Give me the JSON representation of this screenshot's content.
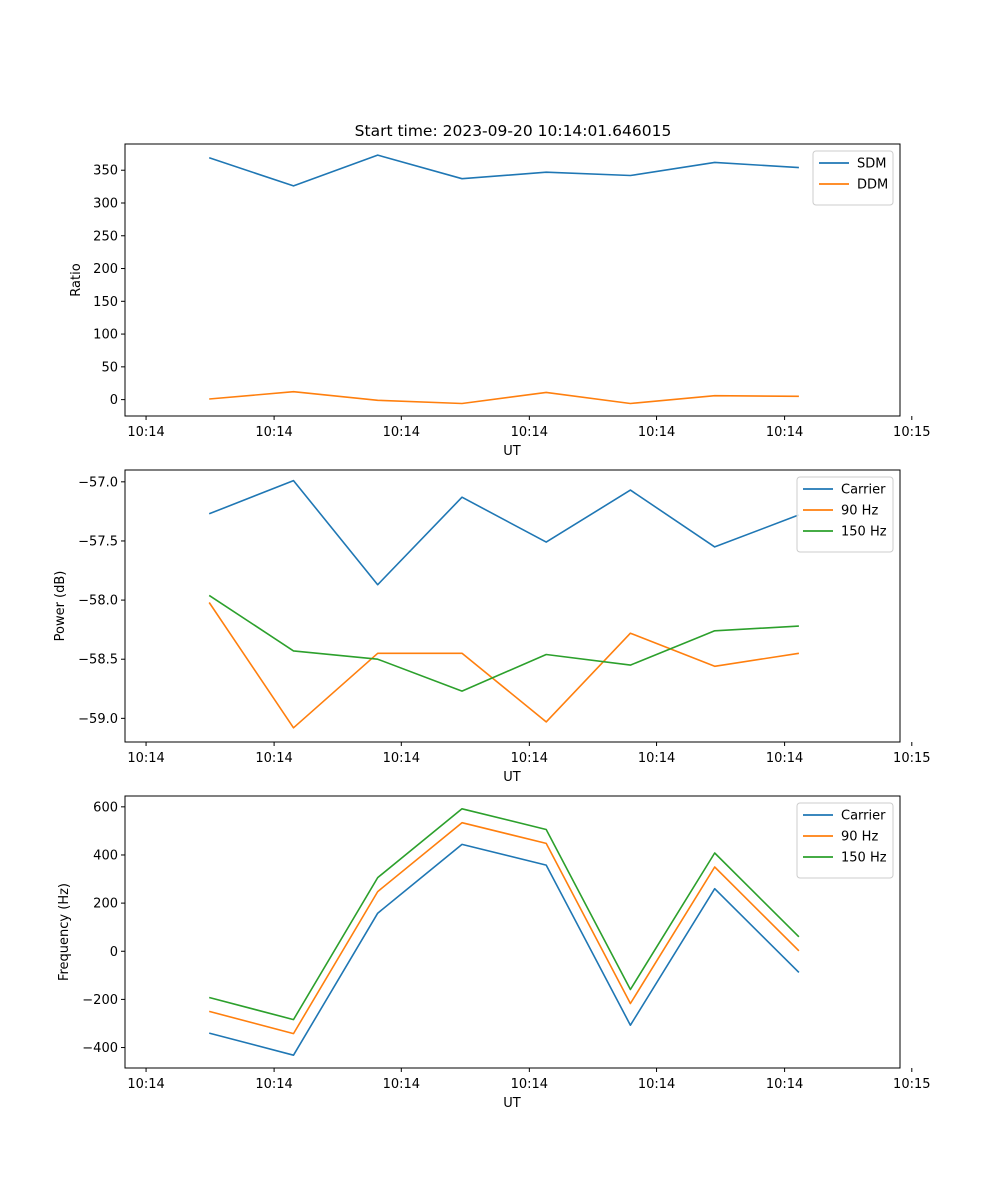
{
  "figure": {
    "title": "Start time: 2023-09-20 10:14:01.646015"
  },
  "colors": {
    "blue": "#1f77b4",
    "orange": "#ff7f0e",
    "green": "#2ca02c"
  },
  "chart_data": [
    {
      "type": "line",
      "title": "Start time: 2023-09-20 10:14:01.646015",
      "xlabel": "UT",
      "ylabel": "Ratio",
      "x": [
        1,
        2,
        3,
        4,
        5,
        6,
        7,
        8
      ],
      "xlim": [
        0,
        9.2
      ],
      "xticks": [
        0.25,
        1.77,
        3.28,
        4.8,
        6.31,
        7.83,
        9.34
      ],
      "xticklabels": [
        "10:14",
        "10:14",
        "10:14",
        "10:14",
        "10:14",
        "10:14",
        "10:15"
      ],
      "ylim": [
        -25,
        390
      ],
      "yticks": [
        0,
        50,
        100,
        150,
        200,
        250,
        300,
        350
      ],
      "yticklabels": [
        "0",
        "50",
        "100",
        "150",
        "200",
        "250",
        "300",
        "350"
      ],
      "legend_position": "top-right",
      "series": [
        {
          "name": "SDM",
          "color": "blue",
          "values": [
            369,
            326,
            373,
            337,
            347,
            342,
            362,
            354
          ]
        },
        {
          "name": "DDM",
          "color": "orange",
          "values": [
            1,
            12,
            -1,
            -6,
            11,
            -6,
            6,
            5
          ]
        }
      ]
    },
    {
      "type": "line",
      "xlabel": "UT",
      "ylabel": "Power (dB)",
      "x": [
        1,
        2,
        3,
        4,
        5,
        6,
        7,
        8
      ],
      "xlim": [
        0,
        9.2
      ],
      "xticks": [
        0.25,
        1.77,
        3.28,
        4.8,
        6.31,
        7.83,
        9.34
      ],
      "xticklabels": [
        "10:14",
        "10:14",
        "10:14",
        "10:14",
        "10:14",
        "10:14",
        "10:15"
      ],
      "ylim": [
        -59.2,
        -56.9
      ],
      "yticks": [
        -59.0,
        -58.5,
        -58.0,
        -57.5,
        -57.0
      ],
      "yticklabels": [
        "−59.0",
        "−58.5",
        "−58.0",
        "−57.5",
        "−57.0"
      ],
      "legend_position": "top-right",
      "series": [
        {
          "name": "Carrier",
          "color": "blue",
          "values": [
            -57.27,
            -56.99,
            -57.87,
            -57.13,
            -57.51,
            -57.07,
            -57.55,
            -57.28
          ]
        },
        {
          "name": "90 Hz",
          "color": "orange",
          "values": [
            -58.02,
            -59.08,
            -58.45,
            -58.45,
            -59.03,
            -58.28,
            -58.56,
            -58.45
          ]
        },
        {
          "name": "150 Hz",
          "color": "green",
          "values": [
            -57.96,
            -58.43,
            -58.5,
            -58.77,
            -58.46,
            -58.55,
            -58.26,
            -58.22
          ]
        }
      ]
    },
    {
      "type": "line",
      "xlabel": "UT",
      "ylabel": "Frequency (Hz)",
      "x": [
        1,
        2,
        3,
        4,
        5,
        6,
        7,
        8
      ],
      "xlim": [
        0,
        9.2
      ],
      "xticks": [
        0.25,
        1.77,
        3.28,
        4.8,
        6.31,
        7.83,
        9.34
      ],
      "xticklabels": [
        "10:14",
        "10:14",
        "10:14",
        "10:14",
        "10:14",
        "10:14",
        "10:15"
      ],
      "ylim": [
        -485,
        645
      ],
      "yticks": [
        -400,
        -200,
        0,
        200,
        400,
        600
      ],
      "yticklabels": [
        "−400",
        "−200",
        "0",
        "200",
        "400",
        "600"
      ],
      "legend_position": "top-right",
      "series": [
        {
          "name": "Carrier",
          "color": "blue",
          "values": [
            -340,
            -432,
            158,
            444,
            358,
            -307,
            260,
            -88
          ]
        },
        {
          "name": "90 Hz",
          "color": "orange",
          "values": [
            -250,
            -342,
            248,
            534,
            448,
            -217,
            350,
            2
          ]
        },
        {
          "name": "150 Hz",
          "color": "green",
          "values": [
            -192,
            -284,
            306,
            592,
            506,
            -159,
            408,
            60
          ]
        }
      ]
    }
  ]
}
